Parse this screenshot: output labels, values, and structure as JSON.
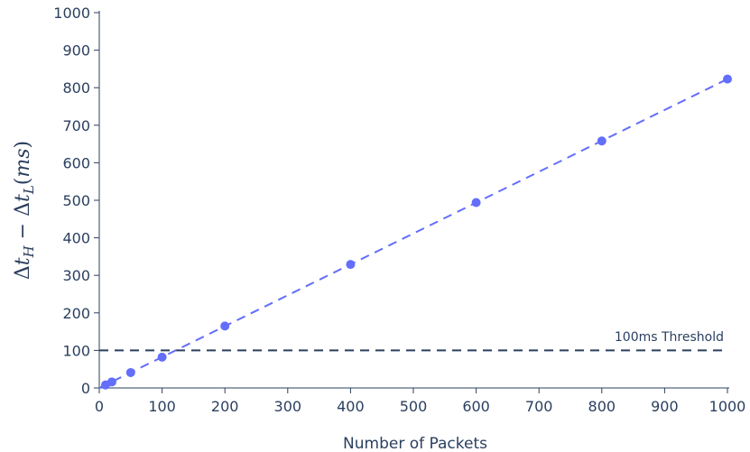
{
  "chart_data": {
    "type": "scatter",
    "xlabel": "Number of Packets",
    "ylabel": "Δt_H − Δt_L(ms)",
    "xlim": [
      0,
      1000
    ],
    "ylim": [
      0,
      1000
    ],
    "x_ticks": [
      0,
      100,
      200,
      300,
      400,
      500,
      600,
      700,
      800,
      900,
      1000
    ],
    "y_ticks": [
      0,
      100,
      200,
      300,
      400,
      500,
      600,
      700,
      800,
      900,
      1000
    ],
    "grid": false,
    "points": {
      "x": [
        10,
        20,
        50,
        100,
        200,
        400,
        600,
        800,
        1000
      ],
      "y": [
        8,
        16,
        41,
        82,
        165,
        329,
        494,
        658,
        823
      ],
      "color": "#636efa"
    },
    "fit_line": {
      "x": [
        0,
        1000
      ],
      "y": [
        0,
        823
      ],
      "color": "#636efa",
      "style": "dashed"
    },
    "threshold": {
      "y": 100,
      "label": "100ms Threshold",
      "color": "#2a3f5f",
      "style": "dashed"
    }
  }
}
